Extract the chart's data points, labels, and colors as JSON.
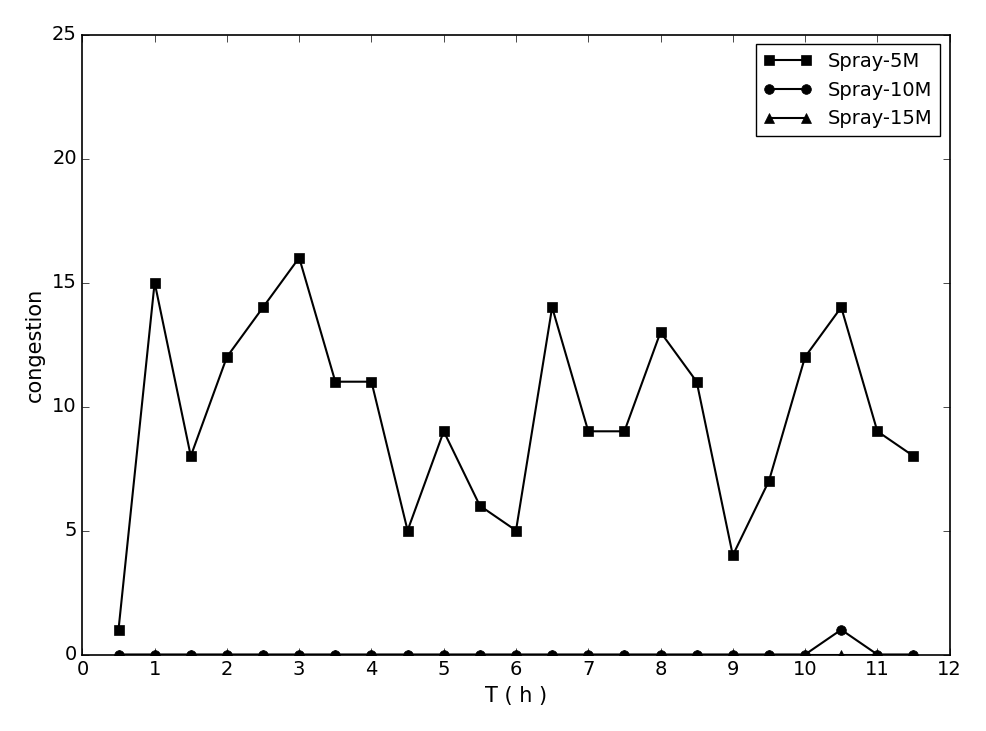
{
  "spray5m_x": [
    0.5,
    1.0,
    1.5,
    2.0,
    2.5,
    3.0,
    3.5,
    4.0,
    4.5,
    5.0,
    5.5,
    6.0,
    6.5,
    7.0,
    7.5,
    8.0,
    8.5,
    9.0,
    9.5,
    10.0,
    10.5,
    11.0,
    11.5
  ],
  "spray5m_y": [
    1,
    15,
    8,
    12,
    14,
    16,
    11,
    11,
    5,
    9,
    6,
    5,
    14,
    9,
    9,
    13,
    11,
    4,
    7,
    12,
    14,
    9,
    8
  ],
  "spray10m_x": [
    0.5,
    1.0,
    1.5,
    2.0,
    2.5,
    3.0,
    3.5,
    4.0,
    4.5,
    5.0,
    5.5,
    6.0,
    6.5,
    7.0,
    7.5,
    8.0,
    8.5,
    9.0,
    9.5,
    10.0,
    10.5,
    11.0,
    11.5
  ],
  "spray10m_y": [
    0,
    0,
    0,
    0,
    0,
    0,
    0,
    0,
    0,
    0,
    0,
    0,
    0,
    0,
    0,
    0,
    0,
    0,
    0,
    0,
    1,
    0,
    0
  ],
  "spray15m_x": [
    0.5,
    1.0,
    1.5,
    2.0,
    2.5,
    3.0,
    3.5,
    4.0,
    4.5,
    5.0,
    5.5,
    6.0,
    6.5,
    7.0,
    7.5,
    8.0,
    8.5,
    9.0,
    9.5,
    10.0,
    10.5,
    11.0,
    11.5
  ],
  "spray15m_y": [
    0,
    0,
    0,
    0,
    0,
    0,
    0,
    0,
    0,
    0,
    0,
    0,
    0,
    0,
    0,
    0,
    0,
    0,
    0,
    0,
    0,
    0,
    0
  ],
  "xlabel": "T ( h )",
  "ylabel": "congestion",
  "xlim": [
    0,
    12
  ],
  "ylim": [
    0,
    25
  ],
  "xticks": [
    0,
    1,
    2,
    3,
    4,
    5,
    6,
    7,
    8,
    9,
    10,
    11,
    12
  ],
  "yticks": [
    0,
    5,
    10,
    15,
    20,
    25
  ],
  "legend_labels": [
    "Spray-5M",
    "Spray-10M",
    "Spray-15M"
  ],
  "line_color": "#000000",
  "marker_5m": "s",
  "marker_10m": "o",
  "marker_15m": "^",
  "markersize": 7,
  "linewidth": 1.5,
  "legend_loc": "upper right",
  "axis_fontsize": 15,
  "tick_fontsize": 14,
  "legend_fontsize": 14
}
